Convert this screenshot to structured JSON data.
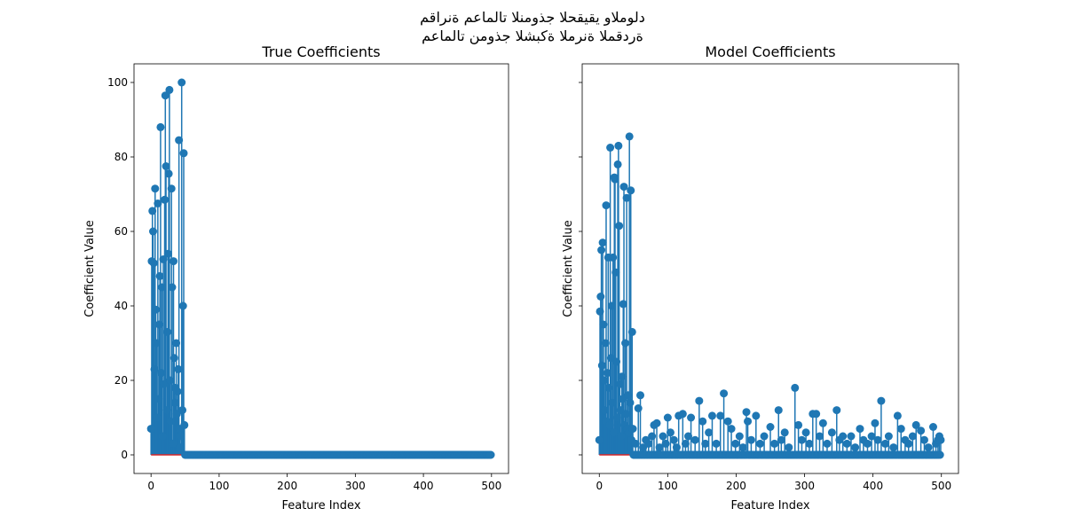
{
  "suptitle_line1": "مقارنة معاملات النموذج الحقيقي والمولد",
  "suptitle_line2": "معاملات نموذج الشبكة المرنة المقدرة",
  "colors": {
    "stem": "#1f77b4",
    "baseline": "#d62728"
  },
  "chart_data": [
    {
      "type": "stem",
      "title": "True Coefficients",
      "xlabel": "Feature Index",
      "ylabel": "Coefficient Value",
      "n_features": 500,
      "xlim": [
        -25,
        525
      ],
      "ylim": [
        -5,
        105
      ],
      "xticks": [
        0,
        100,
        200,
        300,
        400,
        500
      ],
      "yticks": [
        0,
        20,
        40,
        60,
        80,
        100
      ],
      "nonzero": [
        [
          0,
          7
        ],
        [
          1,
          52
        ],
        [
          2,
          65.5
        ],
        [
          3,
          60
        ],
        [
          4,
          51.5
        ],
        [
          5,
          23
        ],
        [
          6,
          71.5
        ],
        [
          7,
          39
        ],
        [
          8,
          30
        ],
        [
          9,
          10
        ],
        [
          10,
          67.5
        ],
        [
          11,
          15
        ],
        [
          12,
          35
        ],
        [
          13,
          48
        ],
        [
          14,
          88
        ],
        [
          15,
          22
        ],
        [
          16,
          45
        ],
        [
          17,
          5
        ],
        [
          18,
          52.5
        ],
        [
          19,
          19
        ],
        [
          20,
          68.5
        ],
        [
          21,
          96.5
        ],
        [
          22,
          77.5
        ],
        [
          23,
          12
        ],
        [
          24,
          33
        ],
        [
          25,
          54
        ],
        [
          26,
          75.5
        ],
        [
          27,
          98
        ],
        [
          28,
          20
        ],
        [
          29,
          9
        ],
        [
          30,
          71.5
        ],
        [
          31,
          45
        ],
        [
          32,
          3
        ],
        [
          33,
          52
        ],
        [
          34,
          26
        ],
        [
          35,
          14
        ],
        [
          36,
          18
        ],
        [
          37,
          30
        ],
        [
          38,
          11
        ],
        [
          39,
          17
        ],
        [
          40,
          23
        ],
        [
          41,
          84.5
        ],
        [
          42,
          7
        ],
        [
          43,
          2
        ],
        [
          44,
          5
        ],
        [
          45,
          100
        ],
        [
          46,
          12
        ],
        [
          47,
          40
        ],
        [
          48,
          81
        ],
        [
          49,
          8
        ]
      ]
    },
    {
      "type": "stem",
      "title": "Model Coefficients",
      "xlabel": "Feature Index",
      "ylabel": "Coefficient Value",
      "n_features": 500,
      "xlim": [
        -25,
        525
      ],
      "ylim": [
        -5,
        105
      ],
      "xticks": [
        0,
        100,
        200,
        300,
        400,
        500
      ],
      "yticks": [
        0,
        20,
        40,
        60,
        80,
        100
      ],
      "nonzero": [
        [
          0,
          4
        ],
        [
          1,
          38.5
        ],
        [
          2,
          42.5
        ],
        [
          3,
          55
        ],
        [
          4,
          24
        ],
        [
          5,
          57
        ],
        [
          6,
          35
        ],
        [
          7,
          20
        ],
        [
          8,
          12
        ],
        [
          9,
          30
        ],
        [
          10,
          67
        ],
        [
          11,
          9
        ],
        [
          12,
          22
        ],
        [
          13,
          53
        ],
        [
          14,
          18
        ],
        [
          15,
          8
        ],
        [
          16,
          82.5
        ],
        [
          17,
          26
        ],
        [
          18,
          40
        ],
        [
          19,
          14
        ],
        [
          20,
          53
        ],
        [
          21,
          6
        ],
        [
          22,
          74.5
        ],
        [
          23,
          74
        ],
        [
          24,
          49
        ],
        [
          25,
          25
        ],
        [
          26,
          10
        ],
        [
          27,
          78
        ],
        [
          28,
          83
        ],
        [
          29,
          61.5
        ],
        [
          30,
          19
        ],
        [
          31,
          12
        ],
        [
          32,
          5
        ],
        [
          33,
          21
        ],
        [
          34,
          15
        ],
        [
          35,
          40.5
        ],
        [
          36,
          72
        ],
        [
          37,
          8
        ],
        [
          38,
          30
        ],
        [
          39,
          11
        ],
        [
          40,
          69
        ],
        [
          41,
          7
        ],
        [
          42,
          16
        ],
        [
          43,
          6
        ],
        [
          44,
          85.5
        ],
        [
          45,
          14
        ],
        [
          46,
          71
        ],
        [
          47,
          4
        ],
        [
          48,
          33
        ],
        [
          49,
          7
        ],
        [
          53,
          3
        ],
        [
          57,
          12.5
        ],
        [
          60,
          16
        ],
        [
          64,
          2
        ],
        [
          68,
          4
        ],
        [
          72,
          3
        ],
        [
          77,
          5
        ],
        [
          80,
          8
        ],
        [
          84,
          8.5
        ],
        [
          88,
          2
        ],
        [
          93,
          5
        ],
        [
          97,
          3
        ],
        [
          100,
          10
        ],
        [
          104,
          6
        ],
        [
          109,
          4
        ],
        [
          113,
          2
        ],
        [
          116,
          10.5
        ],
        [
          122,
          11
        ],
        [
          126,
          3
        ],
        [
          130,
          5
        ],
        [
          134,
          10
        ],
        [
          140,
          4
        ],
        [
          146,
          14.5
        ],
        [
          151,
          9
        ],
        [
          155,
          3
        ],
        [
          160,
          6
        ],
        [
          165,
          10.5
        ],
        [
          171,
          3
        ],
        [
          177,
          10.5
        ],
        [
          182,
          16.5
        ],
        [
          188,
          9
        ],
        [
          193,
          7
        ],
        [
          199,
          3
        ],
        [
          205,
          5
        ],
        [
          210,
          2
        ],
        [
          215,
          11.5
        ],
        [
          217,
          9
        ],
        [
          222,
          4
        ],
        [
          229,
          10.5
        ],
        [
          235,
          3
        ],
        [
          241,
          5
        ],
        [
          250,
          7.5
        ],
        [
          256,
          3
        ],
        [
          262,
          12
        ],
        [
          266,
          4
        ],
        [
          271,
          6
        ],
        [
          277,
          2
        ],
        [
          286,
          18
        ],
        [
          291,
          8
        ],
        [
          296,
          4
        ],
        [
          302,
          6
        ],
        [
          307,
          3
        ],
        [
          312,
          11
        ],
        [
          317,
          11
        ],
        [
          322,
          5
        ],
        [
          327,
          8.5
        ],
        [
          333,
          3
        ],
        [
          340,
          6
        ],
        [
          347,
          12
        ],
        [
          351,
          4
        ],
        [
          356,
          5
        ],
        [
          362,
          3
        ],
        [
          368,
          5
        ],
        [
          374,
          2
        ],
        [
          381,
          7
        ],
        [
          386,
          4
        ],
        [
          392,
          3
        ],
        [
          398,
          5
        ],
        [
          403,
          8.5
        ],
        [
          407,
          4
        ],
        [
          412,
          14.5
        ],
        [
          418,
          3
        ],
        [
          423,
          5
        ],
        [
          430,
          2
        ],
        [
          436,
          10.5
        ],
        [
          441,
          7
        ],
        [
          447,
          4
        ],
        [
          452,
          3
        ],
        [
          458,
          5
        ],
        [
          463,
          8
        ],
        [
          470,
          6.5
        ],
        [
          475,
          4
        ],
        [
          481,
          2
        ],
        [
          488,
          7.5
        ],
        [
          492,
          3
        ],
        [
          495,
          4
        ],
        [
          497,
          5
        ],
        [
          499,
          4
        ]
      ]
    }
  ]
}
